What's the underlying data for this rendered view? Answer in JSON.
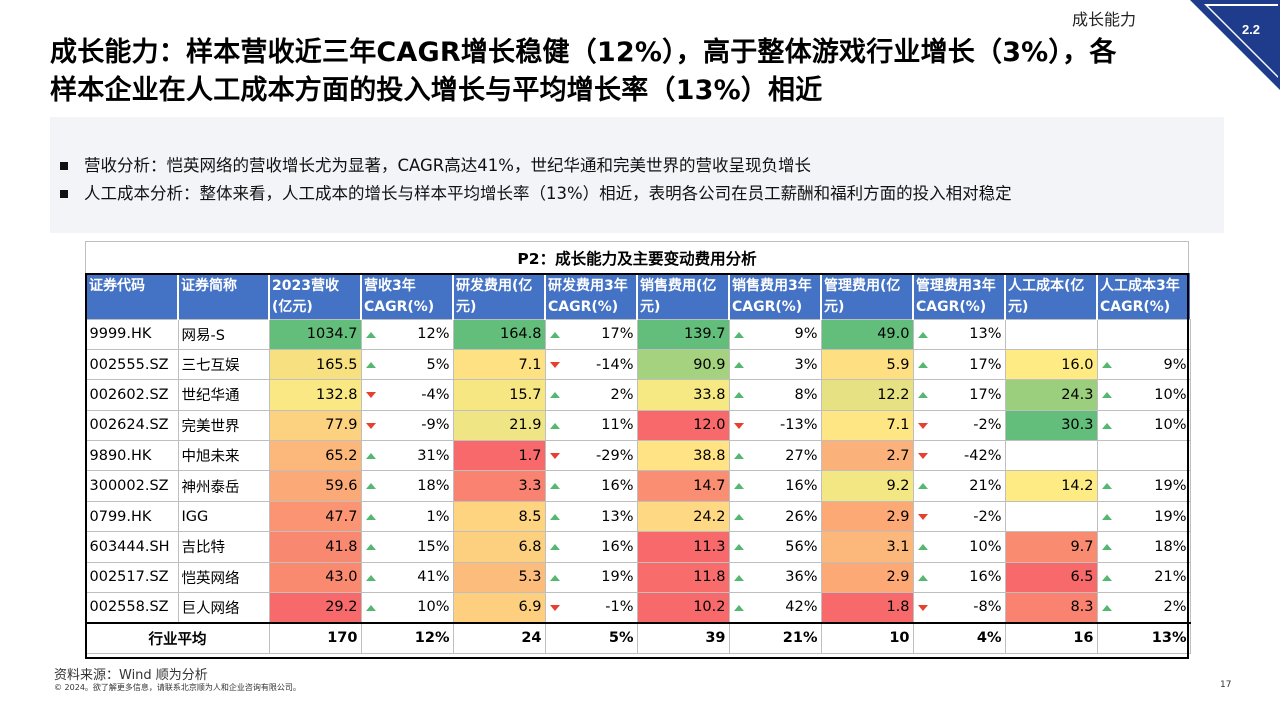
{
  "header": {
    "section_label": "成长能力",
    "section_number": "2.2",
    "title_line1": "成长能力：样本营收近三年CAGR增长稳健（12%），高于整体游戏行业增长（3%），各",
    "title_line2": "样本企业在人工成本方面的投入增长与平均增长率（13%）相近"
  },
  "summary": {
    "bullets": [
      "营收分析：恺英网络的营收增长尤为显著，CAGR高达41%，世纪华通和完美世界的营收呈现负增长",
      "人工成本分析：整体来看，人工成本的增长与样本平均增长率（13%）相近，表明各公司在员工薪酬和福利方面的投入相对稳定"
    ]
  },
  "table": {
    "caption": "P2：成长能力及主要变动费用分析",
    "headers": [
      "证券代码",
      "证券简称",
      "2023营收(亿元)",
      "营收3年CAGR(%)",
      "研发费用(亿元)",
      "研发费用3年CAGR(%)",
      "销售费用(亿元)",
      "销售费用3年CAGR(%)",
      "管理费用(亿元)",
      "管理费用3年CAGR(%)",
      "人工成本(亿元)",
      "人工成本3年CAGR(%)"
    ],
    "rows": [
      {
        "code": "9999.HK",
        "name": "网易-S",
        "rev": "1034.7",
        "rev_c": "12%",
        "rd": "164.8",
        "rd_c": "17%",
        "sales": "139.7",
        "sales_c": "9%",
        "mgmt": "49.0",
        "mgmt_c": "13%",
        "labor": "",
        "labor_c": ""
      },
      {
        "code": "002555.SZ",
        "name": "三七互娱",
        "rev": "165.5",
        "rev_c": "5%",
        "rd": "7.1",
        "rd_c": "-14%",
        "sales": "90.9",
        "sales_c": "3%",
        "mgmt": "5.9",
        "mgmt_c": "17%",
        "labor": "16.0",
        "labor_c": "9%"
      },
      {
        "code": "002602.SZ",
        "name": "世纪华通",
        "rev": "132.8",
        "rev_c": "-4%",
        "rd": "15.7",
        "rd_c": "2%",
        "sales": "33.8",
        "sales_c": "8%",
        "mgmt": "12.2",
        "mgmt_c": "17%",
        "labor": "24.3",
        "labor_c": "10%"
      },
      {
        "code": "002624.SZ",
        "name": "完美世界",
        "rev": "77.9",
        "rev_c": "-9%",
        "rd": "21.9",
        "rd_c": "11%",
        "sales": "12.0",
        "sales_c": "-13%",
        "mgmt": "7.1",
        "mgmt_c": "-2%",
        "labor": "30.3",
        "labor_c": "10%"
      },
      {
        "code": "9890.HK",
        "name": "中旭未来",
        "rev": "65.2",
        "rev_c": "31%",
        "rd": "1.7",
        "rd_c": "-29%",
        "sales": "38.8",
        "sales_c": "27%",
        "mgmt": "2.7",
        "mgmt_c": "-42%",
        "labor": "",
        "labor_c": ""
      },
      {
        "code": "300002.SZ",
        "name": "神州泰岳",
        "rev": "59.6",
        "rev_c": "18%",
        "rd": "3.3",
        "rd_c": "16%",
        "sales": "14.7",
        "sales_c": "16%",
        "mgmt": "9.2",
        "mgmt_c": "21%",
        "labor": "14.2",
        "labor_c": "19%"
      },
      {
        "code": "0799.HK",
        "name": "IGG",
        "rev": "47.7",
        "rev_c": "1%",
        "rd": "8.5",
        "rd_c": "13%",
        "sales": "24.2",
        "sales_c": "26%",
        "mgmt": "2.9",
        "mgmt_c": "-2%",
        "labor": "",
        "labor_c": "19%"
      },
      {
        "code": "603444.SH",
        "name": "吉比特",
        "rev": "41.8",
        "rev_c": "15%",
        "rd": "6.8",
        "rd_c": "16%",
        "sales": "11.3",
        "sales_c": "56%",
        "mgmt": "3.1",
        "mgmt_c": "10%",
        "labor": "9.7",
        "labor_c": "18%"
      },
      {
        "code": "002517.SZ",
        "name": "恺英网络",
        "rev": "43.0",
        "rev_c": "41%",
        "rd": "5.3",
        "rd_c": "19%",
        "sales": "11.8",
        "sales_c": "36%",
        "mgmt": "2.9",
        "mgmt_c": "16%",
        "labor": "6.5",
        "labor_c": "21%"
      },
      {
        "code": "002558.SZ",
        "name": "巨人网络",
        "rev": "29.2",
        "rev_c": "10%",
        "rd": "6.9",
        "rd_c": "-1%",
        "sales": "10.2",
        "sales_c": "42%",
        "mgmt": "1.8",
        "mgmt_c": "-8%",
        "labor": "8.3",
        "labor_c": "2%"
      }
    ],
    "avg": {
      "label": "行业平均",
      "rev": "170",
      "rev_c": "12%",
      "rd": "24",
      "rd_c": "5%",
      "sales": "39",
      "sales_c": "21%",
      "mgmt": "10",
      "mgmt_c": "4%",
      "labor": "16",
      "labor_c": "13%"
    },
    "heat_colors": {
      "rev": [
        "#63be7b",
        "#f7e07f",
        "#f9e883",
        "#fcd17f",
        "#fbb87a",
        "#fbaa77",
        "#fa9472",
        "#f98870",
        "#f98a70",
        "#f8696b"
      ],
      "rd": [
        "#63be7b",
        "#fee182",
        "#f7e783",
        "#f0e584",
        "#f8696b",
        "#f98370",
        "#fed480",
        "#fdd07f",
        "#fcbc7b",
        "#fdcf7f"
      ],
      "sales": [
        "#63be7b",
        "#a4d27f",
        "#f6e883",
        "#f8696b",
        "#ffe384",
        "#f98e72",
        "#fed882",
        "#f8696b",
        "#f86c6b",
        "#f8696b"
      ],
      "mgmt": [
        "#63be7b",
        "#fedf82",
        "#e6e283",
        "#fde683",
        "#fbb27a",
        "#f2e783",
        "#fca976",
        "#fcb87a",
        "#fca976",
        "#f8696b"
      ],
      "labor": [
        "",
        "#ffeb84",
        "#9bcf7e",
        "#63be7b",
        "",
        "#ffeb84",
        "",
        "#f98b70",
        "#f8696b",
        "#f98370"
      ]
    },
    "arrow_colors": {
      "up": "#56b870",
      "down": "#e8402e"
    }
  },
  "footer": {
    "source": "资料来源：Wind 顺为分析",
    "copyright": "© 2024。欲了解更多信息，请联系北京顺为人和企业咨询有限公司。",
    "page_number": "17"
  }
}
